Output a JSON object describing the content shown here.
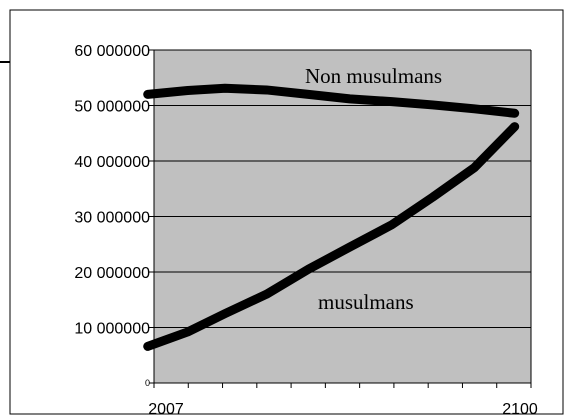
{
  "chart_data": {
    "type": "line",
    "xlim": [
      2007,
      2100
    ],
    "ylim": [
      0,
      60000000
    ],
    "grid": true,
    "plot_background": "#c0c0c0",
    "line_color": "#000000",
    "y_ticks": [
      {
        "value": 60000000,
        "label": "60 000000"
      },
      {
        "value": 50000000,
        "label": "50 000000"
      },
      {
        "value": 40000000,
        "label": "40 000000"
      },
      {
        "value": 30000000,
        "label": "30 000000"
      },
      {
        "value": 20000000,
        "label": "20 000000"
      },
      {
        "value": 10000000,
        "label": "10 000000"
      },
      {
        "value": 0,
        "label": "0"
      }
    ],
    "x_tick_labels": [
      {
        "value": 2007,
        "label": "2007"
      },
      {
        "value": 2100,
        "label": "2100"
      }
    ],
    "series": [
      {
        "name": "Non musulmans",
        "x": [
          2002.2,
          2012.7,
          2022.5,
          2033.4,
          2044.4,
          2055.3,
          2066.3,
          2077.1,
          2088.0,
          2098.6
        ],
        "values": [
          52000000,
          52700000,
          53100000,
          52800000,
          52000000,
          51200000,
          50700000,
          50100000,
          49400000,
          48600000
        ]
      },
      {
        "name": "musulmans",
        "x": [
          2002.2,
          2012.7,
          2022.5,
          2033.4,
          2044.4,
          2055.3,
          2066.3,
          2077.1,
          2088.0,
          2098.6
        ],
        "values": [
          6600000,
          9200000,
          12500000,
          16000000,
          20500000,
          24500000,
          28500000,
          33500000,
          38800000,
          46200000
        ]
      }
    ]
  }
}
